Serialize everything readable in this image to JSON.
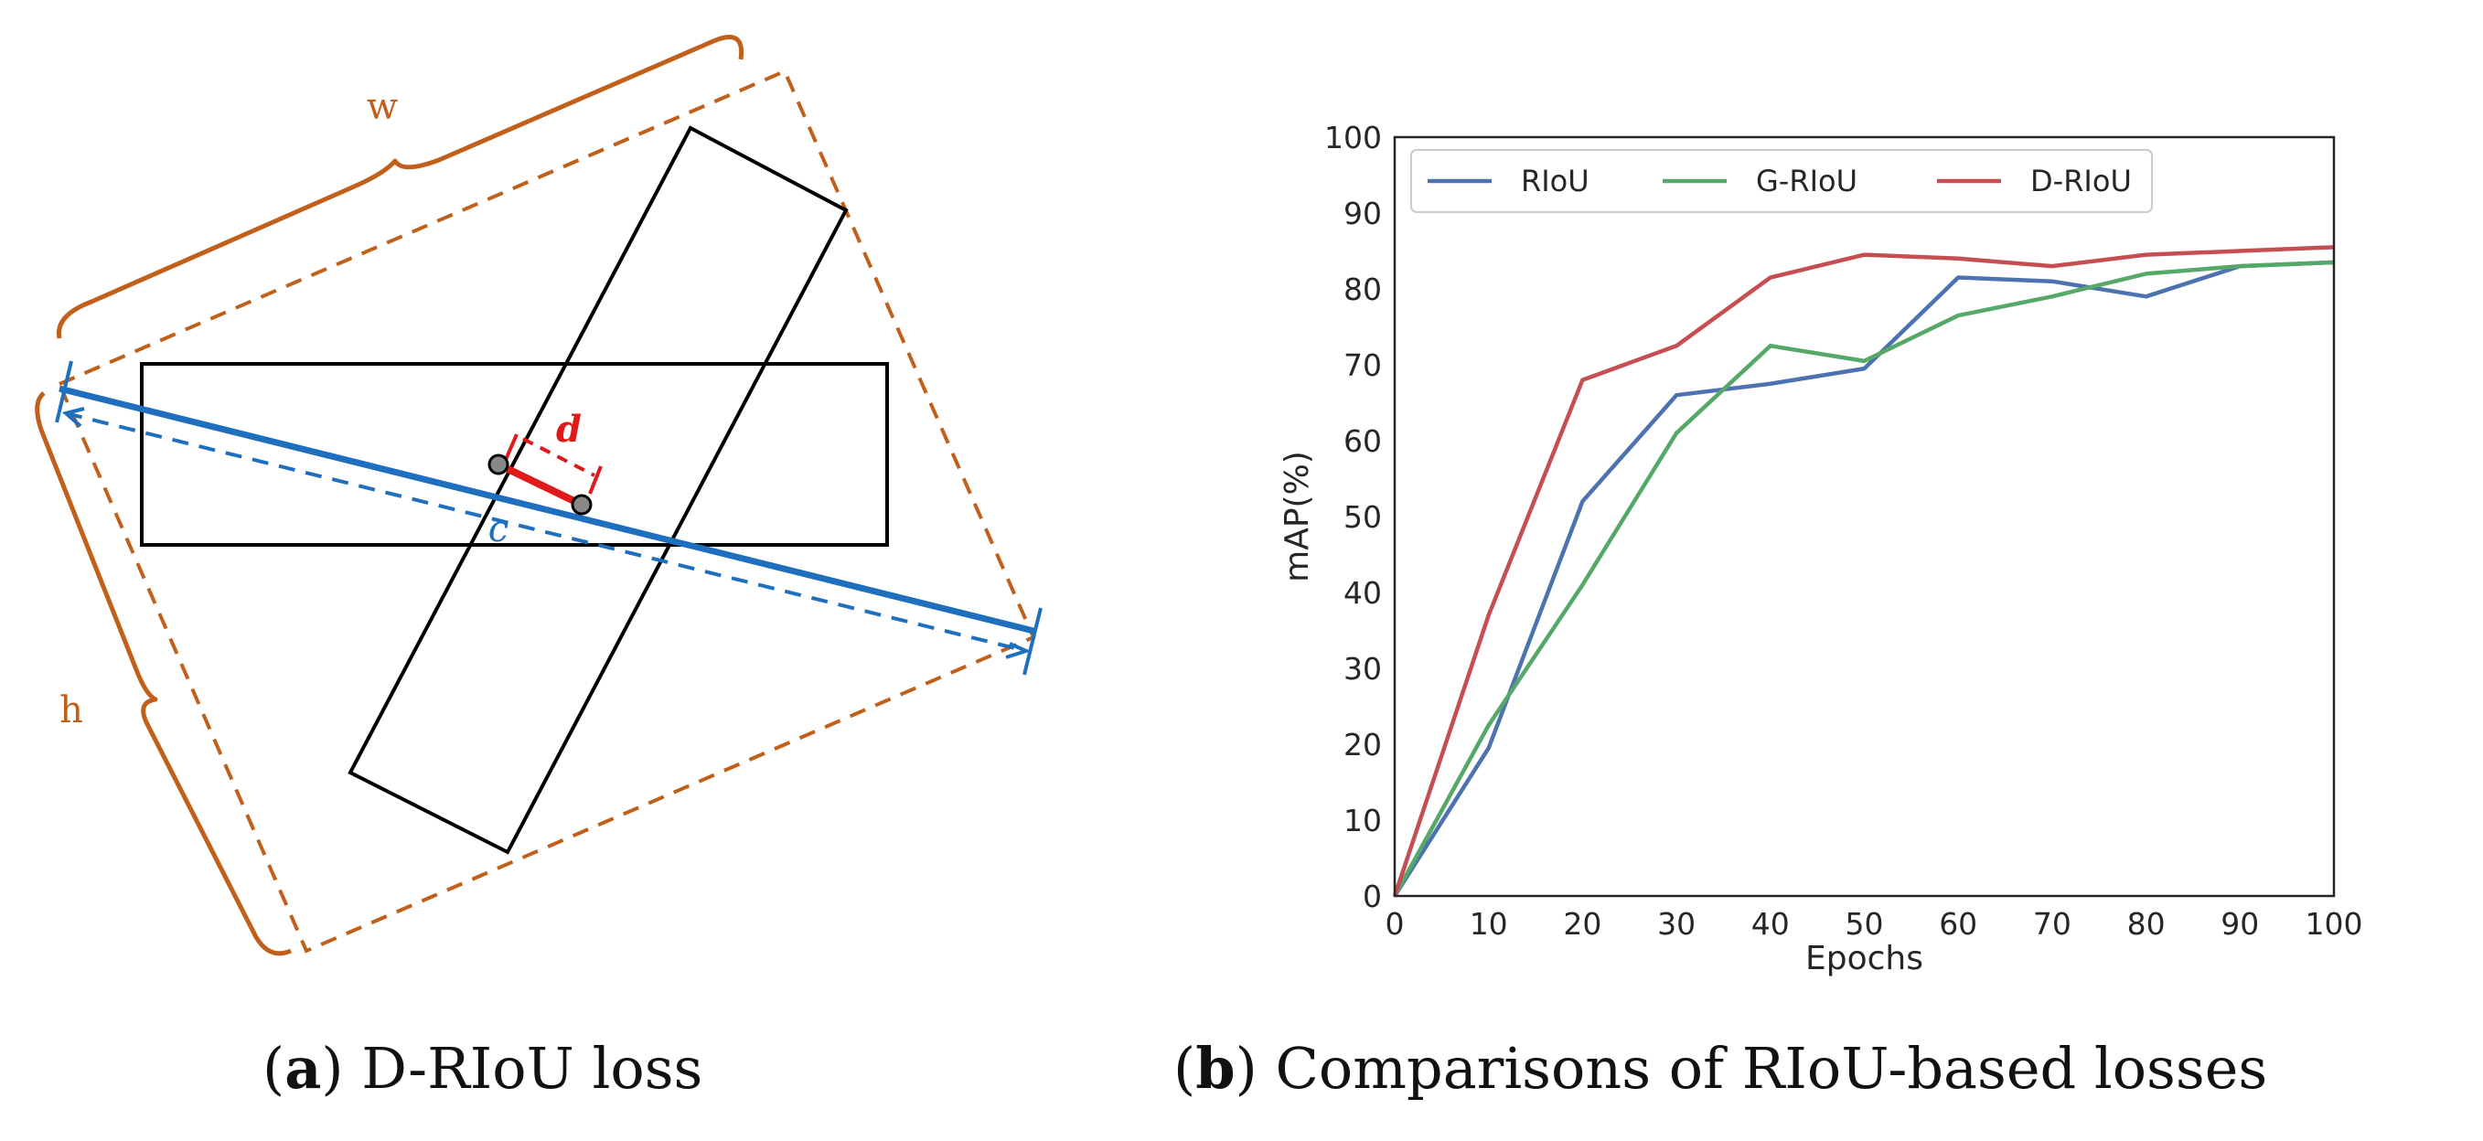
{
  "diagram": {
    "label_w": "w",
    "label_h": "h",
    "label_d": "d",
    "label_c": "c",
    "colors": {
      "enclosing": "#c0601b",
      "diagonal": "#1f6fbf",
      "distance": "#e0191b",
      "box": "#000000"
    }
  },
  "captions": {
    "a_tag": "a",
    "a_text": " D-RIoU loss",
    "b_tag": "b",
    "b_text": " Comparisons of RIoU-based losses"
  },
  "chart_data": {
    "type": "line",
    "xlabel": "Epochs",
    "ylabel": "mAP(%)",
    "xlim": [
      0,
      100
    ],
    "ylim": [
      0,
      100
    ],
    "xticks": [
      0,
      10,
      20,
      30,
      40,
      50,
      60,
      70,
      80,
      90,
      100
    ],
    "yticks": [
      0,
      10,
      20,
      30,
      40,
      50,
      60,
      70,
      80,
      90,
      100
    ],
    "grid": false,
    "legend_position": "top",
    "x": [
      0,
      10,
      20,
      30,
      40,
      50,
      60,
      70,
      80,
      90,
      100
    ],
    "series": [
      {
        "name": "RIoU",
        "color": "#4c72b0",
        "values": [
          0,
          19.5,
          52,
          66,
          67.5,
          69.5,
          81.5,
          81,
          79,
          83,
          83.5
        ]
      },
      {
        "name": "G-RIoU",
        "color": "#55a868",
        "values": [
          0,
          22.5,
          41,
          61,
          72.5,
          70.5,
          76.5,
          79,
          82,
          83,
          83.5
        ]
      },
      {
        "name": "D-RIoU",
        "color": "#c44e52",
        "values": [
          0,
          37,
          68,
          72.5,
          81.5,
          84.5,
          84,
          83,
          84.5,
          85,
          85.5
        ]
      }
    ]
  }
}
